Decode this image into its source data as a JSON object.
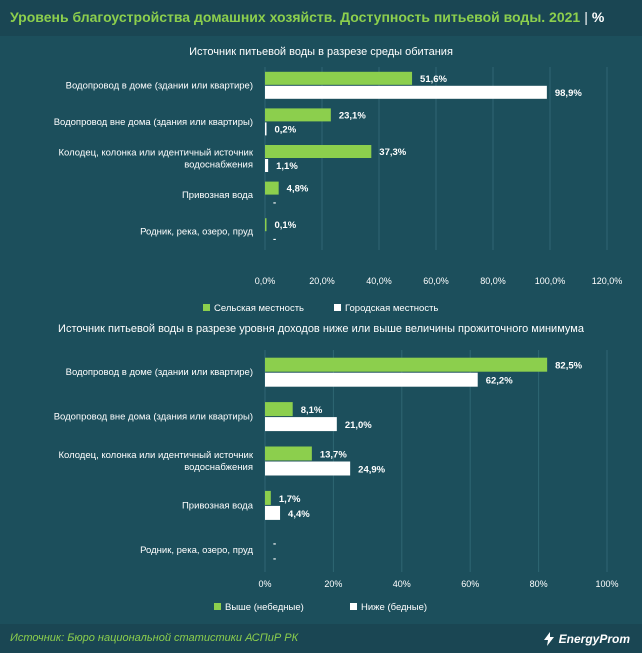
{
  "header": {
    "title": "Уровень благоустройства домашних хозяйств. Доступность питьевой воды. 2021",
    "unit": "%"
  },
  "footer": {
    "source": "Источник: Бюро национальной статистики АСПиР РК",
    "logo_text": "EnergyProm"
  },
  "colors": {
    "background": "#1c4f5c",
    "green": "#8ccf4d",
    "white": "#ffffff",
    "grid": "#2f6673",
    "title_green": "#8ccf4d"
  },
  "chart_data": [
    {
      "type": "bar",
      "orientation": "horizontal",
      "title": "Источник питьевой воды в разрезе среды обитания",
      "categories": [
        [
          "Водопровод в доме (здании или квартире)"
        ],
        [
          "Водопровод вне дома (здания или квартиры)"
        ],
        [
          "Колодец, колонка или идентичный источник",
          "водоснабжения"
        ],
        [
          "Привозная вода"
        ],
        [
          "Родник, река, озеро, пруд"
        ]
      ],
      "series": [
        {
          "name": "Сельская местность",
          "color": "#8ccf4d",
          "values": [
            51.6,
            23.1,
            37.3,
            4.8,
            0.1
          ],
          "labels": [
            "51,6%",
            "23,1%",
            "37,3%",
            "4,8%",
            "0,1%"
          ]
        },
        {
          "name": "Городская местность",
          "color": "#ffffff",
          "values": [
            98.9,
            0.2,
            1.1,
            null,
            null
          ],
          "labels": [
            "98,9%",
            "0,2%",
            "1,1%",
            "-",
            "-"
          ]
        }
      ],
      "xlim": [
        0,
        120
      ],
      "ticks": [
        "0,0%",
        "20,0%",
        "40,0%",
        "60,0%",
        "80,0%",
        "100,0%",
        "120,0%"
      ],
      "grid": true,
      "legend": "bottom"
    },
    {
      "type": "bar",
      "orientation": "horizontal",
      "title": "Источник питьевой воды в разрезе уровня доходов ниже или выше величины прожиточного минимума",
      "categories": [
        [
          "Водопровод в доме (здании или квартире)"
        ],
        [
          "Водопровод вне дома (здания или квартиры)"
        ],
        [
          "Колодец, колонка или идентичный источник",
          "водоснабжения"
        ],
        [
          "Привозная вода"
        ],
        [
          "Родник, река, озеро, пруд"
        ]
      ],
      "series": [
        {
          "name": "Выше (небедные)",
          "color": "#8ccf4d",
          "values": [
            82.5,
            8.1,
            13.7,
            1.7,
            null
          ],
          "labels": [
            "82,5%",
            "8,1%",
            "13,7%",
            "1,7%",
            "-"
          ]
        },
        {
          "name": "Ниже (бедные)",
          "color": "#ffffff",
          "values": [
            62.2,
            21.0,
            24.9,
            4.4,
            null
          ],
          "labels": [
            "62,2%",
            "21,0%",
            "24,9%",
            "4,4%",
            "-"
          ]
        }
      ],
      "xlim": [
        0,
        100
      ],
      "ticks": [
        "0%",
        "20%",
        "40%",
        "60%",
        "80%",
        "100%"
      ],
      "grid": true,
      "legend": "bottom"
    }
  ]
}
